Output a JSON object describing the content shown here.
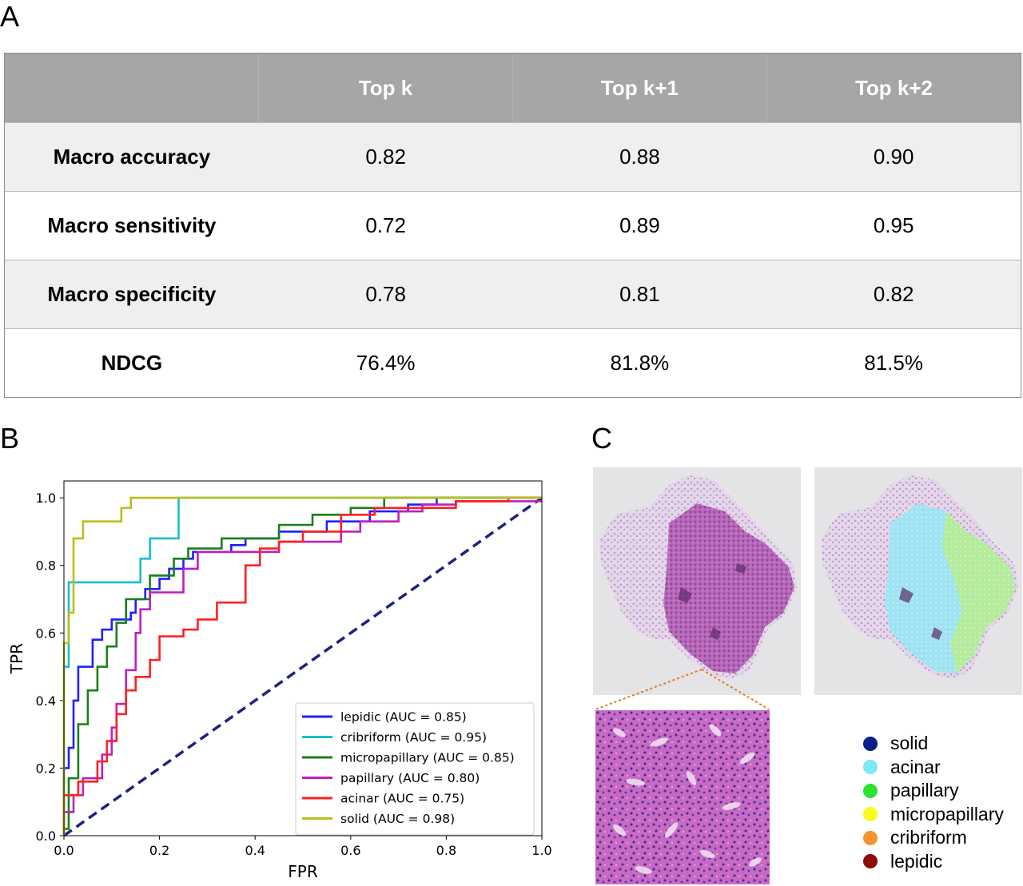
{
  "panels": {
    "a": "A",
    "b": "B",
    "c": "C"
  },
  "table": {
    "columns": [
      "",
      "Top k",
      "Top k+1",
      "Top k+2"
    ],
    "rows": [
      {
        "label": "Macro accuracy",
        "values": [
          "0.82",
          "0.88",
          "0.90"
        ]
      },
      {
        "label": "Macro sensitivity",
        "values": [
          "0.72",
          "0.89",
          "0.95"
        ]
      },
      {
        "label": "Macro specificity",
        "values": [
          "0.78",
          "0.81",
          "0.82"
        ]
      },
      {
        "label": "NDCG",
        "values": [
          "76.4%",
          "81.8%",
          "81.5%"
        ]
      }
    ]
  },
  "chart_data": {
    "type": "line",
    "xlabel": "FPR",
    "ylabel": "TPR",
    "xlim": [
      0,
      1
    ],
    "ylim": [
      0,
      1.05
    ],
    "xticks": [
      "0.0",
      "0.2",
      "0.4",
      "0.6",
      "0.8",
      "1.0"
    ],
    "yticks": [
      "0.0",
      "0.2",
      "0.4",
      "0.6",
      "0.8",
      "1.0"
    ],
    "grid": false,
    "legend_position": "bottom-right",
    "diagonal": {
      "color": "#1a237e",
      "style": "dashed",
      "points": [
        [
          0,
          0
        ],
        [
          1,
          1
        ]
      ]
    },
    "series": [
      {
        "name": "lepidic (AUC = 0.85)",
        "color": "#1f1fff",
        "points": [
          [
            0,
            0
          ],
          [
            0,
            0.2
          ],
          [
            0.01,
            0.2
          ],
          [
            0.01,
            0.26
          ],
          [
            0.02,
            0.26
          ],
          [
            0.02,
            0.4
          ],
          [
            0.03,
            0.4
          ],
          [
            0.03,
            0.5
          ],
          [
            0.06,
            0.5
          ],
          [
            0.06,
            0.58
          ],
          [
            0.08,
            0.58
          ],
          [
            0.08,
            0.61
          ],
          [
            0.1,
            0.61
          ],
          [
            0.1,
            0.64
          ],
          [
            0.14,
            0.64
          ],
          [
            0.14,
            0.66
          ],
          [
            0.15,
            0.66
          ],
          [
            0.15,
            0.7
          ],
          [
            0.17,
            0.7
          ],
          [
            0.17,
            0.73
          ],
          [
            0.2,
            0.73
          ],
          [
            0.2,
            0.76
          ],
          [
            0.22,
            0.76
          ],
          [
            0.22,
            0.79
          ],
          [
            0.25,
            0.79
          ],
          [
            0.25,
            0.82
          ],
          [
            0.27,
            0.82
          ],
          [
            0.27,
            0.84
          ],
          [
            0.35,
            0.84
          ],
          [
            0.35,
            0.86
          ],
          [
            0.38,
            0.86
          ],
          [
            0.38,
            0.88
          ],
          [
            0.45,
            0.88
          ],
          [
            0.45,
            0.9
          ],
          [
            0.55,
            0.9
          ],
          [
            0.55,
            0.93
          ],
          [
            0.64,
            0.93
          ],
          [
            0.64,
            0.96
          ],
          [
            0.72,
            0.96
          ],
          [
            0.72,
            0.98
          ],
          [
            0.78,
            0.98
          ],
          [
            0.78,
            1.0
          ],
          [
            1,
            1.0
          ]
        ]
      },
      {
        "name": "cribriform (AUC = 0.95)",
        "color": "#17becf",
        "points": [
          [
            0,
            0
          ],
          [
            0,
            0.5
          ],
          [
            0.01,
            0.5
          ],
          [
            0.01,
            0.75
          ],
          [
            0.16,
            0.75
          ],
          [
            0.16,
            0.82
          ],
          [
            0.18,
            0.82
          ],
          [
            0.18,
            0.88
          ],
          [
            0.24,
            0.88
          ],
          [
            0.24,
            1.0
          ],
          [
            1,
            1.0
          ]
        ]
      },
      {
        "name": "micropapillary (AUC = 0.85)",
        "color": "#1a7f1a",
        "points": [
          [
            0,
            0
          ],
          [
            0,
            0.02
          ],
          [
            0.01,
            0.02
          ],
          [
            0.01,
            0.17
          ],
          [
            0.03,
            0.17
          ],
          [
            0.03,
            0.33
          ],
          [
            0.05,
            0.33
          ],
          [
            0.05,
            0.43
          ],
          [
            0.07,
            0.43
          ],
          [
            0.07,
            0.5
          ],
          [
            0.09,
            0.5
          ],
          [
            0.09,
            0.56
          ],
          [
            0.11,
            0.56
          ],
          [
            0.11,
            0.63
          ],
          [
            0.13,
            0.63
          ],
          [
            0.13,
            0.7
          ],
          [
            0.18,
            0.7
          ],
          [
            0.18,
            0.77
          ],
          [
            0.23,
            0.77
          ],
          [
            0.23,
            0.82
          ],
          [
            0.26,
            0.82
          ],
          [
            0.26,
            0.85
          ],
          [
            0.33,
            0.85
          ],
          [
            0.33,
            0.88
          ],
          [
            0.45,
            0.88
          ],
          [
            0.45,
            0.92
          ],
          [
            0.52,
            0.92
          ],
          [
            0.52,
            0.95
          ],
          [
            0.6,
            0.95
          ],
          [
            0.6,
            0.97
          ],
          [
            0.67,
            0.97
          ],
          [
            0.67,
            1.0
          ],
          [
            1,
            1.0
          ]
        ]
      },
      {
        "name": "papillary (AUC = 0.80)",
        "color": "#bf1fbf",
        "points": [
          [
            0,
            0
          ],
          [
            0,
            0.07
          ],
          [
            0.02,
            0.07
          ],
          [
            0.02,
            0.12
          ],
          [
            0.04,
            0.12
          ],
          [
            0.04,
            0.17
          ],
          [
            0.08,
            0.17
          ],
          [
            0.08,
            0.24
          ],
          [
            0.1,
            0.24
          ],
          [
            0.1,
            0.32
          ],
          [
            0.11,
            0.32
          ],
          [
            0.11,
            0.39
          ],
          [
            0.13,
            0.39
          ],
          [
            0.13,
            0.49
          ],
          [
            0.15,
            0.49
          ],
          [
            0.15,
            0.6
          ],
          [
            0.16,
            0.6
          ],
          [
            0.16,
            0.67
          ],
          [
            0.18,
            0.67
          ],
          [
            0.18,
            0.72
          ],
          [
            0.25,
            0.72
          ],
          [
            0.25,
            0.79
          ],
          [
            0.28,
            0.79
          ],
          [
            0.28,
            0.84
          ],
          [
            0.45,
            0.84
          ],
          [
            0.45,
            0.87
          ],
          [
            0.58,
            0.87
          ],
          [
            0.58,
            0.9
          ],
          [
            0.62,
            0.9
          ],
          [
            0.62,
            0.93
          ],
          [
            0.7,
            0.93
          ],
          [
            0.7,
            0.96
          ],
          [
            0.75,
            0.96
          ],
          [
            0.75,
            0.98
          ],
          [
            0.82,
            0.98
          ],
          [
            0.82,
            0.99
          ],
          [
            1,
            0.99
          ]
        ]
      },
      {
        "name": "acinar (AUC = 0.75)",
        "color": "#ff1f1f",
        "points": [
          [
            0,
            0
          ],
          [
            0,
            0.12
          ],
          [
            0.03,
            0.12
          ],
          [
            0.03,
            0.16
          ],
          [
            0.07,
            0.16
          ],
          [
            0.07,
            0.22
          ],
          [
            0.09,
            0.22
          ],
          [
            0.09,
            0.28
          ],
          [
            0.11,
            0.28
          ],
          [
            0.11,
            0.36
          ],
          [
            0.13,
            0.36
          ],
          [
            0.13,
            0.43
          ],
          [
            0.15,
            0.43
          ],
          [
            0.15,
            0.47
          ],
          [
            0.18,
            0.47
          ],
          [
            0.18,
            0.52
          ],
          [
            0.2,
            0.52
          ],
          [
            0.2,
            0.59
          ],
          [
            0.25,
            0.59
          ],
          [
            0.25,
            0.61
          ],
          [
            0.28,
            0.61
          ],
          [
            0.28,
            0.64
          ],
          [
            0.32,
            0.64
          ],
          [
            0.32,
            0.69
          ],
          [
            0.38,
            0.69
          ],
          [
            0.38,
            0.8
          ],
          [
            0.41,
            0.8
          ],
          [
            0.41,
            0.85
          ],
          [
            0.45,
            0.85
          ],
          [
            0.45,
            0.87
          ],
          [
            0.5,
            0.87
          ],
          [
            0.5,
            0.9
          ],
          [
            0.58,
            0.9
          ],
          [
            0.58,
            0.95
          ],
          [
            0.65,
            0.95
          ],
          [
            0.65,
            0.97
          ],
          [
            0.82,
            0.97
          ],
          [
            0.82,
            0.99
          ],
          [
            0.93,
            0.99
          ],
          [
            0.93,
            1.0
          ],
          [
            1,
            1.0
          ]
        ]
      },
      {
        "name": "solid (AUC = 0.98)",
        "color": "#bdbd1f",
        "points": [
          [
            0,
            0
          ],
          [
            0,
            0.57
          ],
          [
            0.01,
            0.57
          ],
          [
            0.01,
            0.66
          ],
          [
            0.02,
            0.66
          ],
          [
            0.02,
            0.88
          ],
          [
            0.04,
            0.88
          ],
          [
            0.04,
            0.93
          ],
          [
            0.12,
            0.93
          ],
          [
            0.12,
            0.97
          ],
          [
            0.14,
            0.97
          ],
          [
            0.14,
            1.0
          ],
          [
            1,
            1.0
          ]
        ]
      }
    ]
  },
  "legend_key": {
    "items": [
      {
        "label": "solid",
        "color": "#0b1f8c"
      },
      {
        "label": "acinar",
        "color": "#7fe8f5"
      },
      {
        "label": "papillary",
        "color": "#2ee32e"
      },
      {
        "label": "micropapillary",
        "color": "#fafa1e"
      },
      {
        "label": "cribriform",
        "color": "#f59331"
      },
      {
        "label": "lepidic",
        "color": "#8c0b0b"
      }
    ]
  }
}
